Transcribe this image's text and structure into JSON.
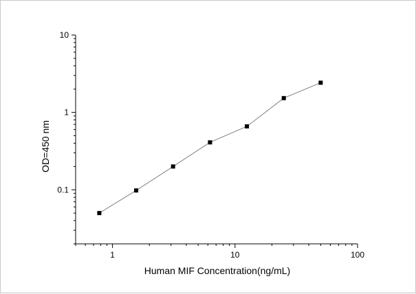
{
  "chart_data": {
    "type": "line",
    "title": "",
    "xlabel": "Human MIF Concentration(ng/mL)",
    "ylabel": "OD=450 nm",
    "x_scale": "log",
    "y_scale": "log",
    "xlim": [
      0.5,
      100
    ],
    "ylim": [
      0.02,
      10
    ],
    "x_ticks": [
      1,
      10,
      100
    ],
    "x_tick_labels": [
      "1",
      "10",
      "100"
    ],
    "y_ticks": [
      0.1,
      1,
      10
    ],
    "y_tick_labels": [
      "0.1",
      "1",
      "10"
    ],
    "grid": false,
    "legend": "none",
    "marker": "square",
    "line_color": "#808080",
    "marker_color": "#000000",
    "series": [
      {
        "x": [
          0.78,
          1.56,
          3.12,
          6.25,
          12.5,
          25,
          50
        ],
        "y": [
          0.05,
          0.098,
          0.2,
          0.41,
          0.66,
          1.53,
          2.42
        ]
      }
    ]
  }
}
